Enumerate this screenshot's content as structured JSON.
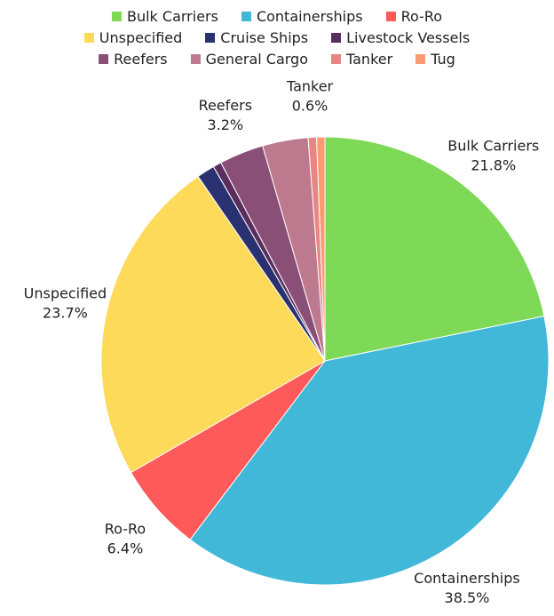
{
  "chart_data": {
    "type": "pie",
    "title": "",
    "legend_position": "top",
    "slices": [
      {
        "label": "Bulk Carriers",
        "value": 21.8,
        "percent_label": "21.8%",
        "color": "#7ED957",
        "show_label": true
      },
      {
        "label": "Containerships",
        "value": 38.5,
        "percent_label": "38.5%",
        "color": "#42B8D8",
        "show_label": true
      },
      {
        "label": "Ro-Ro",
        "value": 6.4,
        "percent_label": "6.4%",
        "color": "#FF5A5A",
        "show_label": true
      },
      {
        "label": "Unspecified",
        "value": 23.7,
        "percent_label": "23.7%",
        "color": "#FDDA5A",
        "show_label": true
      },
      {
        "label": "Cruise Ships",
        "value": 1.3,
        "percent_label": "",
        "color": "#2A3170",
        "show_label": false
      },
      {
        "label": "Livestock Vessels",
        "value": 0.6,
        "percent_label": "",
        "color": "#5A2D5E",
        "show_label": false
      },
      {
        "label": "Reefers",
        "value": 3.2,
        "percent_label": "3.2%",
        "color": "#8A4F76",
        "show_label": true
      },
      {
        "label": "General Cargo",
        "value": 3.3,
        "percent_label": "",
        "color": "#BD7A8F",
        "show_label": false
      },
      {
        "label": "Tanker",
        "value": 0.6,
        "percent_label": "0.6%",
        "color": "#E88683",
        "show_label": true
      },
      {
        "label": "Tug",
        "value": 0.6,
        "percent_label": "",
        "color": "#FA9A72",
        "show_label": false
      }
    ]
  }
}
